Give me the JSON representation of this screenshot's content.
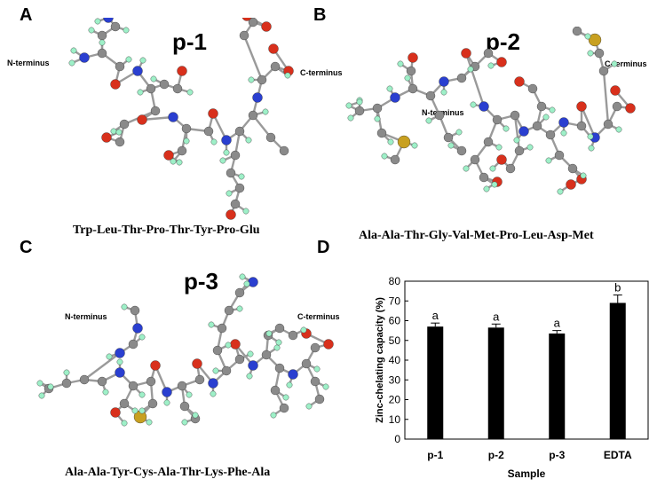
{
  "panels": {
    "A": {
      "letter": "A",
      "title": "p-1",
      "n_terminus": "N-terminus",
      "c_terminus": "C-terminus",
      "sequence": "Trp-Leu-Thr-Pro-Thr-Tyr-Pro-Glu"
    },
    "B": {
      "letter": "B",
      "title": "p-2",
      "n_terminus": "N-terminus",
      "c_terminus": "C-terminus",
      "sequence": "Ala-Ala-Thr-Gly-Val-Met-Pro-Leu-Asp-Met"
    },
    "C": {
      "letter": "C",
      "title": "p-3",
      "n_terminus": "N-terminus",
      "c_terminus": "C-terminus",
      "sequence": "Ala-Ala-Tyr-Cys-Ala-Thr-Lys-Phe-Ala"
    },
    "D": {
      "letter": "D"
    }
  },
  "colors": {
    "carbon": "#8a8a8a",
    "hydrogen": "#9ef0c8",
    "oxygen": "#d8301c",
    "nitrogen": "#2a3fd0",
    "sulfur": "#c8a020",
    "bond": "#9a9a9a",
    "bar": "#000000"
  },
  "chart_data": {
    "type": "bar",
    "categories": [
      "p-1",
      "p-2",
      "p-3",
      "EDTA"
    ],
    "values": [
      57,
      56.5,
      53.5,
      69
    ],
    "errors": [
      1.8,
      1.8,
      1.5,
      4.0
    ],
    "significance": [
      "a",
      "a",
      "a",
      "b"
    ],
    "xlabel": "Sample",
    "ylabel": "Zinc-chelating capacity (%)",
    "ylim": [
      0,
      80
    ],
    "yticks": [
      "0",
      "10",
      "20",
      "30",
      "40",
      "50",
      "60",
      "70",
      "80"
    ],
    "grid": false
  }
}
